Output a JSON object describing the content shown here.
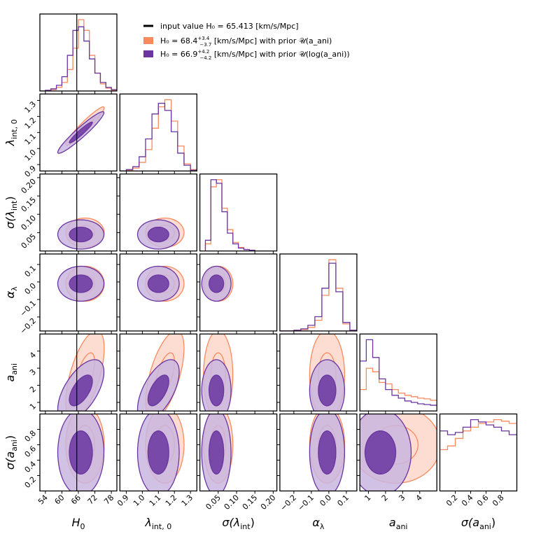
{
  "chart_data": {
    "type": "corner",
    "params": [
      {
        "label": {
          "text": "H",
          "sub": "0",
          "tail": ""
        },
        "lim": [
          52,
          80
        ],
        "ticks": [
          54,
          60,
          66,
          72,
          78
        ],
        "bins": [
          52,
          54,
          56,
          58,
          60,
          62,
          64,
          66,
          68,
          70,
          72,
          74,
          76,
          78,
          80
        ]
      },
      {
        "label": {
          "text": "λ",
          "sub": "int, 0",
          "tail": ""
        },
        "lim": [
          0.86,
          1.34
        ],
        "ticks": [
          0.9,
          {
            "value": 1,
            "label": "1.0"
          },
          1.1,
          1.2,
          1.3
        ],
        "bins": [
          0.86,
          0.9,
          0.94,
          0.98,
          1.02,
          1.06,
          1.1,
          1.14,
          1.18,
          1.22,
          1.26,
          1.3,
          1.34
        ]
      },
      {
        "label": {
          "text": "σ(λ",
          "sub": "int",
          "tail": ")"
        },
        "lim": [
          0,
          0.21
        ],
        "ticks": [
          0.05,
          {
            "value": 0.1,
            "label": "0.10"
          },
          0.15,
          {
            "value": 0.2,
            "label": "0.20"
          }
        ],
        "bins": [
          0,
          0.015,
          0.03,
          0.045,
          0.06,
          0.075,
          0.09,
          0.105,
          0.12,
          0.135,
          0.15,
          0.165,
          0.18,
          0.195,
          0.21
        ]
      },
      {
        "label": {
          "text": "α",
          "sub": "λ",
          "tail": ""
        },
        "lim": [
          -0.28,
          0.16
        ],
        "ticks": [
          {
            "value": -0.2,
            "label": "−0.2"
          },
          {
            "value": -0.1,
            "label": "−0.1"
          },
          {
            "value": 0,
            "label": "0.0"
          },
          0.1
        ],
        "bins": [
          -0.28,
          -0.24,
          -0.2,
          -0.16,
          -0.12,
          -0.08,
          -0.04,
          0,
          0.04,
          0.08,
          0.12,
          0.16
        ]
      },
      {
        "label": {
          "text": "a",
          "sub": "ani",
          "tail": ""
        },
        "lim": [
          0.5,
          5
        ],
        "ticks": [
          1,
          2,
          3,
          4
        ],
        "bins": [
          0.5,
          0.875,
          1.25,
          1.625,
          2,
          2.375,
          2.75,
          3.125,
          3.5,
          3.875,
          4.25,
          4.625,
          5
        ]
      },
      {
        "label": {
          "text": "σ(a",
          "sub": "ani",
          "tail": ")"
        },
        "lim": [
          0,
          1
        ],
        "ticks": [
          0.2,
          0.4,
          0.6,
          0.8
        ],
        "bins": [
          0,
          0.1,
          0.2,
          0.3,
          0.4,
          0.5,
          0.6,
          0.7,
          0.8,
          0.9,
          1
        ]
      }
    ],
    "input_value": 65.413,
    "input_label": {
      "prefix": "input value H₀ = ",
      "suffix": " [km/s/Mpc]"
    },
    "series": [
      {
        "name": {
          "prefix": "H₀ = 68.4",
          "sup": "+3.4",
          "sub": "−3.7",
          "suffix": " [km/s/Mpc] with prior 𝒰(a_ani)"
        },
        "color": "#f98a5e",
        "fill": "#fcc6b2",
        "mean": [
          68.4,
          1.14,
          0.05,
          -0.01,
          2.6,
          0.6
        ],
        "sd": [
          3.5,
          0.06,
          0.02,
          0.05,
          1.3,
          0.25
        ],
        "hist": [
          [
            0,
            1,
            2,
            5,
            12,
            30,
            60,
            100,
            85,
            50,
            25,
            10,
            4,
            1
          ],
          [
            0,
            1,
            4,
            12,
            30,
            60,
            90,
            100,
            70,
            35,
            10,
            2
          ],
          [
            0,
            10,
            90,
            100,
            60,
            30,
            12,
            5,
            2,
            1,
            0,
            0,
            0,
            0
          ],
          [
            0,
            0,
            1,
            2,
            5,
            15,
            50,
            100,
            60,
            10,
            1
          ],
          [
            30,
            60,
            55,
            40,
            38,
            30,
            25,
            22,
            20,
            18,
            17,
            15
          ],
          [
            55,
            60,
            70,
            80,
            85,
            90,
            92,
            95,
            93,
            90
          ]
        ]
      },
      {
        "name": {
          "prefix": "H₀ = 66.9",
          "sup": "+4.2",
          "sub": "−4.2",
          "suffix": " [km/s/Mpc] with prior 𝒰(log(a_ani))"
        },
        "color": "#6a35a0",
        "fill": "#c9b6e0",
        "mean": [
          66.9,
          1.1,
          0.045,
          -0.01,
          1.7,
          0.5
        ],
        "sd": [
          4.2,
          0.065,
          0.02,
          0.05,
          0.9,
          0.28
        ],
        "hist": [
          [
            0,
            1,
            3,
            8,
            20,
            50,
            85,
            90,
            70,
            45,
            25,
            12,
            5,
            2
          ],
          [
            0,
            2,
            6,
            20,
            45,
            80,
            95,
            85,
            55,
            25,
            8,
            1
          ],
          [
            0,
            15,
            100,
            95,
            55,
            25,
            10,
            4,
            2,
            1,
            0,
            0,
            0,
            0
          ],
          [
            0,
            0,
            1,
            3,
            8,
            20,
            60,
            95,
            55,
            12,
            1
          ],
          [
            70,
            100,
            75,
            45,
            30,
            22,
            18,
            14,
            12,
            10,
            9,
            8
          ],
          [
            80,
            75,
            78,
            85,
            95,
            92,
            88,
            85,
            80,
            75
          ]
        ]
      }
    ],
    "correlations": [
      [
        0,
        1,
        0.95
      ],
      [
        0,
        4,
        0.6
      ],
      [
        1,
        4,
        0.6
      ]
    ],
    "levels": [
      1,
      2
    ]
  }
}
